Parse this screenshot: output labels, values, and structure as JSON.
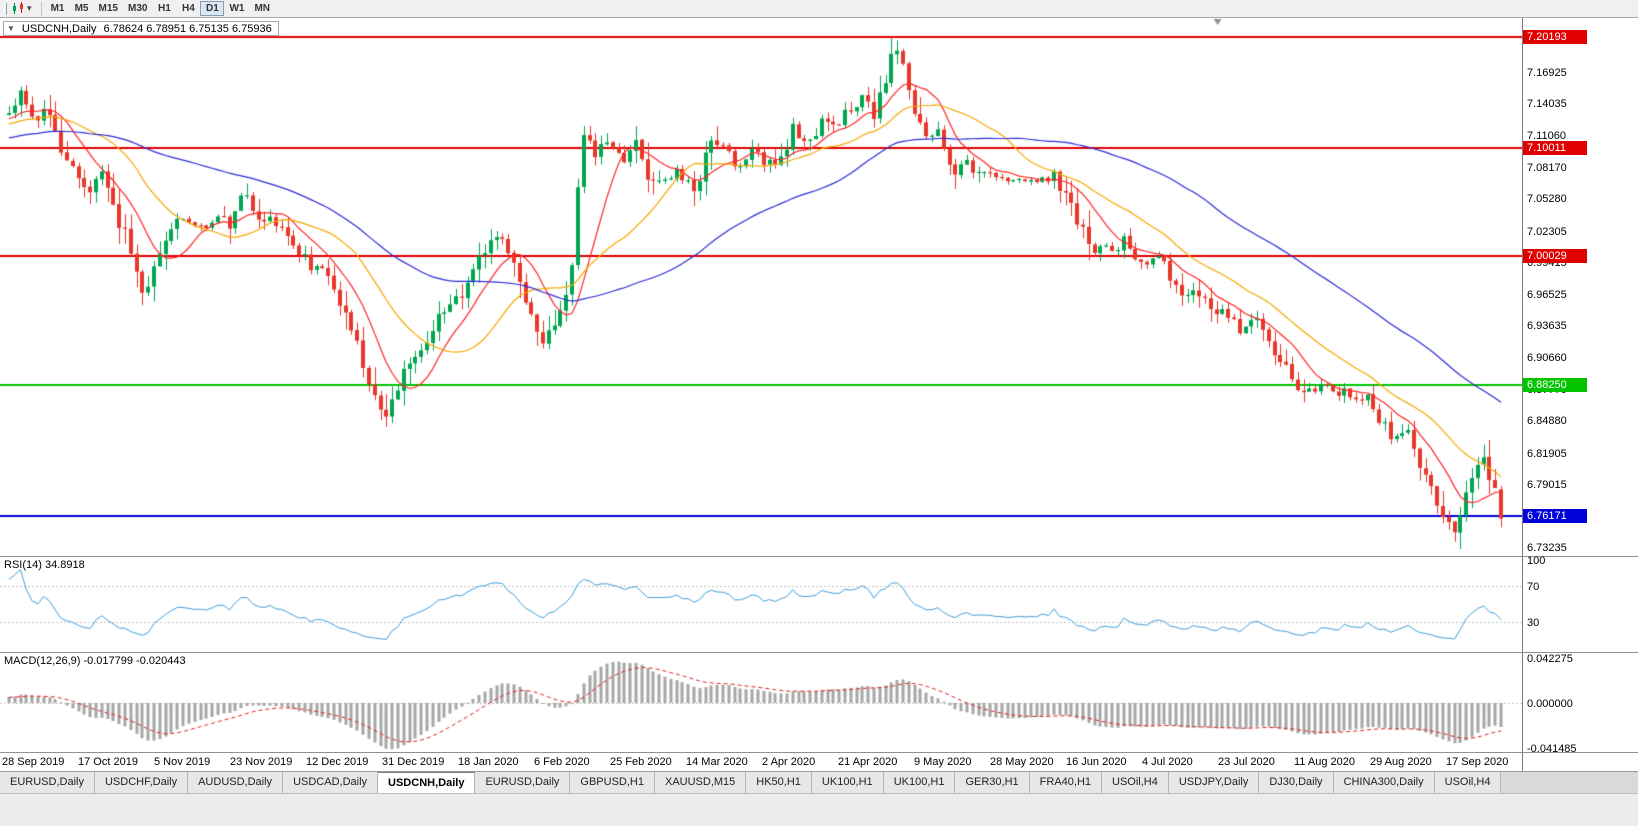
{
  "toolbar": {
    "timeframes": [
      "M1",
      "M5",
      "M15",
      "M30",
      "H1",
      "H4",
      "D1",
      "W1",
      "MN"
    ],
    "active_timeframe": "D1"
  },
  "chart": {
    "collapse_arrow": "▼",
    "symbol_title": "USDCNH,Daily",
    "ohlc_text": "6.78624 6.78951 6.75135 6.75936"
  },
  "rsi": {
    "label": "RSI(14) 34.8918",
    "period": 14,
    "value": 34.8918,
    "line_color": "#3f9edb",
    "levels": [
      70,
      30
    ],
    "axis_ticks": [
      100,
      70,
      30
    ]
  },
  "macd": {
    "label": "MACD(12,26,9) -0.017799 -0.020443",
    "fast": 12,
    "slow": 26,
    "signal_period": 9,
    "main_value": -0.017799,
    "signal_value": -0.020443,
    "hist_color": "#a6a6a6",
    "signal_color": "#e02020",
    "axis_ticks": [
      0.042275,
      0,
      -0.041485
    ]
  },
  "tabs": {
    "active_index": 4,
    "items": [
      "EURUSD,Daily",
      "USDCHF,Daily",
      "AUDUSD,Daily",
      "USDCAD,Daily",
      "USDCNH,Daily",
      "EURUSD,Daily",
      "GBPUSD,H1",
      "XAUUSD,M15",
      "HK50,H1",
      "UK100,H1",
      "UK100,H1",
      "GER30,H1",
      "FRA40,H1",
      "USOil,H4",
      "USDJPY,Daily",
      "DJ30,Daily",
      "CHINA300,Daily",
      "USOil,H4"
    ]
  },
  "chart_data": {
    "type": "candlestick",
    "symbol": "USDCNH",
    "timeframe": "Daily",
    "title": "USDCNH,Daily",
    "current_ohlc": {
      "open": 6.78624,
      "high": 6.78951,
      "low": 6.75135,
      "close": 6.75936
    },
    "bar_count": 258,
    "y_range": {
      "top": 7.2195,
      "bottom": 6.725
    },
    "y_axis_ticks": [
      7.16925,
      7.14035,
      7.1106,
      7.0817,
      7.0528,
      7.02305,
      6.99415,
      6.96525,
      6.93635,
      6.9066,
      6.8777,
      6.8488,
      6.81905,
      6.79015,
      6.76125,
      6.73235
    ],
    "x_tick_labels": [
      "28 Sep 2019",
      "17 Oct 2019",
      "5 Nov 2019",
      "23 Nov 2019",
      "12 Dec 2019",
      "31 Dec 2019",
      "18 Jan 2020",
      "6 Feb 2020",
      "25 Feb 2020",
      "14 Mar 2020",
      "2 Apr 2020",
      "21 Apr 2020",
      "9 May 2020",
      "28 May 2020",
      "16 Jun 2020",
      "4 Jul 2020",
      "23 Jul 2020",
      "11 Aug 2020",
      "29 Aug 2020",
      "17 Sep 2020"
    ],
    "horizontal_lines": [
      {
        "price": 7.20193,
        "color": "#e00000",
        "width": 2
      },
      {
        "price": 7.10011,
        "color": "#e00000",
        "width": 2
      },
      {
        "price": 7.00029,
        "color": "#e00000",
        "width": 2
      },
      {
        "price": 6.8825,
        "color": "#00c400",
        "width": 2
      },
      {
        "price": 6.76171,
        "color": "#0000d8",
        "width": 2
      }
    ],
    "moving_averages": [
      {
        "period": 9,
        "color": "#ff2727"
      },
      {
        "period": 21,
        "color": "#f5a800"
      },
      {
        "period": 55,
        "color": "#2d2dd6"
      }
    ],
    "up_color": "#00a651",
    "down_color": "#e8372b",
    "warmup": {
      "bars": 60,
      "start": 7.085,
      "end": 7.128
    },
    "shift_marker_x": 0.8,
    "price_path": [
      [
        0.0,
        7.128
      ],
      [
        0.008,
        7.148
      ],
      [
        0.0181,
        7.118
      ],
      [
        0.0248,
        7.14
      ],
      [
        0.0348,
        7.1
      ],
      [
        0.0448,
        7.08
      ],
      [
        0.0549,
        7.06
      ],
      [
        0.0616,
        7.075
      ],
      [
        0.0683,
        7.05
      ],
      [
        0.0783,
        7.02
      ],
      [
        0.085,
        6.99
      ],
      [
        0.0917,
        6.965
      ],
      [
        0.0984,
        7.0
      ],
      [
        0.1051,
        7.02
      ],
      [
        0.1151,
        7.035
      ],
      [
        0.1285,
        7.025
      ],
      [
        0.1386,
        7.035
      ],
      [
        0.1486,
        7.03
      ],
      [
        0.1586,
        7.063
      ],
      [
        0.1653,
        7.03
      ],
      [
        0.1754,
        7.035
      ],
      [
        0.1854,
        7.02
      ],
      [
        0.1954,
        7.005
      ],
      [
        0.2021,
        6.99
      ],
      [
        0.2088,
        6.995
      ],
      [
        0.2155,
        6.975
      ],
      [
        0.2222,
        6.955
      ],
      [
        0.2289,
        6.935
      ],
      [
        0.2356,
        6.91
      ],
      [
        0.2423,
        6.885
      ],
      [
        0.2477,
        6.862
      ],
      [
        0.2543,
        6.855
      ],
      [
        0.261,
        6.88
      ],
      [
        0.2677,
        6.9
      ],
      [
        0.2744,
        6.915
      ],
      [
        0.2824,
        6.93
      ],
      [
        0.2925,
        6.953
      ],
      [
        0.3025,
        6.965
      ],
      [
        0.3126,
        6.99
      ],
      [
        0.3226,
        7.01
      ],
      [
        0.3293,
        7.025
      ],
      [
        0.336,
        7.0
      ],
      [
        0.3427,
        6.975
      ],
      [
        0.3494,
        6.945
      ],
      [
        0.3561,
        6.92
      ],
      [
        0.3628,
        6.93
      ],
      [
        0.3695,
        6.95
      ],
      [
        0.3762,
        6.975
      ],
      [
        0.3815,
        7.06
      ],
      [
        0.3862,
        7.12
      ],
      [
        0.3929,
        7.09
      ],
      [
        0.3996,
        7.11
      ],
      [
        0.4063,
        7.1
      ],
      [
        0.413,
        7.09
      ],
      [
        0.4197,
        7.11
      ],
      [
        0.4264,
        7.08
      ],
      [
        0.4331,
        7.06
      ],
      [
        0.4398,
        7.07
      ],
      [
        0.4465,
        7.08
      ],
      [
        0.4532,
        7.07
      ],
      [
        0.4599,
        7.06
      ],
      [
        0.4666,
        7.09
      ],
      [
        0.4732,
        7.11
      ],
      [
        0.4799,
        7.1
      ],
      [
        0.4866,
        7.08
      ],
      [
        0.4933,
        7.09
      ],
      [
        0.5,
        7.1
      ],
      [
        0.5067,
        7.08
      ],
      [
        0.5134,
        7.09
      ],
      [
        0.5201,
        7.1
      ],
      [
        0.5268,
        7.12
      ],
      [
        0.5335,
        7.1
      ],
      [
        0.5402,
        7.11
      ],
      [
        0.5469,
        7.13
      ],
      [
        0.5536,
        7.12
      ],
      [
        0.5603,
        7.13
      ],
      [
        0.5669,
        7.14
      ],
      [
        0.5736,
        7.15
      ],
      [
        0.5803,
        7.13
      ],
      [
        0.587,
        7.16
      ],
      [
        0.5937,
        7.19
      ],
      [
        0.6004,
        7.17
      ],
      [
        0.6071,
        7.13
      ],
      [
        0.6138,
        7.11
      ],
      [
        0.6205,
        7.12
      ],
      [
        0.6272,
        7.1
      ],
      [
        0.6339,
        7.08
      ],
      [
        0.6406,
        7.09
      ],
      [
        0.6473,
        7.07
      ],
      [
        0.654,
        7.08
      ],
      [
        0.6606,
        7.075
      ],
      [
        0.674,
        7.07
      ],
      [
        0.6874,
        7.07
      ],
      [
        0.7008,
        7.075
      ],
      [
        0.7075,
        7.06
      ],
      [
        0.7141,
        7.04
      ],
      [
        0.7208,
        7.02
      ],
      [
        0.7275,
        7.0
      ],
      [
        0.7342,
        7.01
      ],
      [
        0.7409,
        7.005
      ],
      [
        0.7476,
        7.015
      ],
      [
        0.7543,
        7.0
      ],
      [
        0.761,
        6.995
      ],
      [
        0.7677,
        7.0
      ],
      [
        0.7744,
        6.99
      ],
      [
        0.7811,
        6.975
      ],
      [
        0.7878,
        6.96
      ],
      [
        0.7945,
        6.975
      ],
      [
        0.8012,
        6.96
      ],
      [
        0.8078,
        6.945
      ],
      [
        0.8145,
        6.955
      ],
      [
        0.8212,
        6.94
      ],
      [
        0.8279,
        6.93
      ],
      [
        0.8346,
        6.945
      ],
      [
        0.8413,
        6.93
      ],
      [
        0.848,
        6.915
      ],
      [
        0.8547,
        6.9
      ],
      [
        0.8614,
        6.885
      ],
      [
        0.8681,
        6.875
      ],
      [
        0.8748,
        6.875
      ],
      [
        0.8815,
        6.89
      ],
      [
        0.8882,
        6.87
      ],
      [
        0.8949,
        6.88
      ],
      [
        0.9015,
        6.865
      ],
      [
        0.9082,
        6.875
      ],
      [
        0.9149,
        6.86
      ],
      [
        0.9216,
        6.845
      ],
      [
        0.9283,
        6.835
      ],
      [
        0.935,
        6.845
      ],
      [
        0.9417,
        6.82
      ],
      [
        0.9484,
        6.8
      ],
      [
        0.9551,
        6.785
      ],
      [
        0.9618,
        6.755
      ],
      [
        0.9685,
        6.745
      ],
      [
        0.9752,
        6.775
      ],
      [
        0.9819,
        6.8
      ],
      [
        0.9886,
        6.815
      ],
      [
        0.9953,
        6.786
      ],
      [
        1.0,
        6.759
      ]
    ]
  }
}
